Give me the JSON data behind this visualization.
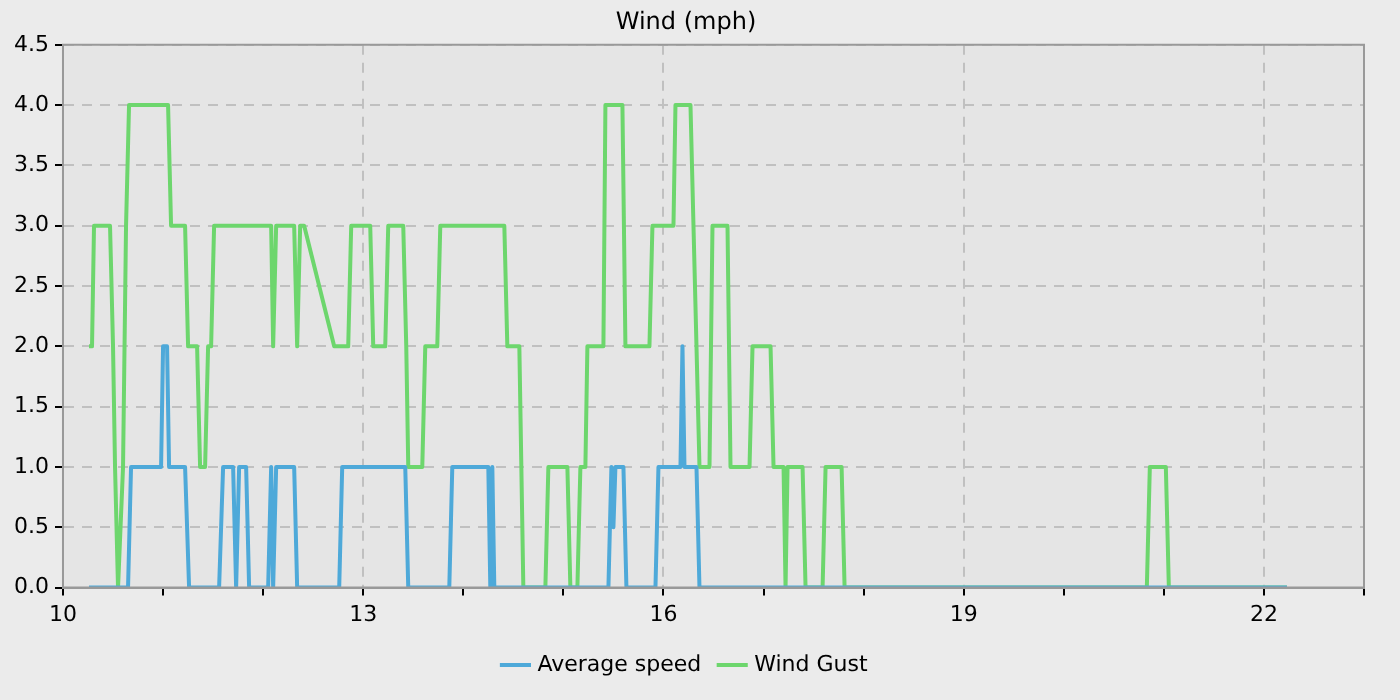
{
  "chart_data": {
    "type": "line",
    "title": "Wind (mph)",
    "xlim": [
      10,
      23
    ],
    "xticks": [
      10,
      {
        "value": 11,
        "label": null
      },
      {
        "value": 12,
        "label": null
      },
      13,
      {
        "value": 14,
        "label": null
      },
      {
        "value": 15,
        "label": null
      },
      16,
      {
        "value": 17,
        "label": null
      },
      {
        "value": 18,
        "label": null
      },
      19,
      {
        "value": 20,
        "label": null
      },
      {
        "value": 21,
        "label": null
      },
      22,
      {
        "value": 23,
        "label": null
      }
    ],
    "ylim": [
      0,
      4.5
    ],
    "yticks": [
      {
        "value": 0,
        "label": "0.0"
      },
      0.5,
      {
        "value": 1,
        "label": "1.0"
      },
      1.5,
      {
        "value": 2,
        "label": "2.0"
      },
      2.5,
      {
        "value": 3,
        "label": "3.0"
      },
      3.5,
      {
        "value": 4,
        "label": "4.0"
      },
      4.5
    ],
    "grid": true,
    "legend": "bottom",
    "marker": "none",
    "line_style": "solid",
    "series": [
      {
        "name": "Average speed",
        "color": "#4ea9d9",
        "x": [
          10.26,
          10.65,
          10.68,
          10.98,
          11.0,
          11.04,
          11.06,
          11.22,
          11.26,
          11.56,
          11.6,
          11.7,
          11.73,
          11.76,
          11.83,
          11.86,
          12.05,
          12.08,
          12.1,
          12.13,
          12.31,
          12.34,
          12.76,
          12.79,
          13.42,
          13.45,
          13.86,
          13.89,
          14.25,
          14.27,
          14.29,
          14.31,
          15.45,
          15.48,
          15.5,
          15.52,
          15.6,
          15.63,
          15.92,
          15.95,
          16.17,
          16.19,
          16.21,
          16.33,
          16.36,
          22.23
        ],
        "values": [
          0,
          0,
          1,
          1,
          2,
          2,
          1,
          1,
          0,
          0,
          1,
          1,
          0,
          1,
          1,
          0,
          0,
          1,
          0,
          1,
          1,
          0,
          0,
          1,
          1,
          0,
          0,
          1,
          1,
          0,
          1,
          0,
          0,
          1,
          0.5,
          1,
          1,
          0,
          0,
          1,
          1,
          2,
          1,
          1,
          0,
          0
        ]
      },
      {
        "name": "Wind Gust",
        "color": "#6dd66d",
        "x": [
          10.26,
          10.29,
          10.31,
          10.47,
          10.5,
          10.52,
          10.55,
          10.6,
          10.63,
          10.66,
          11.05,
          11.08,
          11.22,
          11.25,
          11.34,
          11.37,
          11.42,
          11.45,
          11.48,
          11.51,
          12.08,
          12.1,
          12.13,
          12.31,
          12.34,
          12.37,
          12.41,
          12.71,
          12.85,
          12.88,
          13.07,
          13.1,
          13.22,
          13.25,
          13.4,
          13.43,
          13.45,
          13.59,
          13.62,
          13.74,
          13.77,
          14.41,
          14.44,
          14.56,
          14.6,
          14.82,
          14.85,
          15.04,
          15.07,
          15.14,
          15.17,
          15.22,
          15.24,
          15.4,
          15.42,
          15.59,
          15.62,
          15.86,
          15.89,
          16.1,
          16.12,
          16.27,
          16.3,
          16.33,
          16.36,
          16.46,
          16.49,
          16.64,
          16.67,
          16.86,
          16.89,
          17.07,
          17.1,
          17.2,
          17.22,
          17.24,
          17.39,
          17.42,
          17.59,
          17.62,
          17.78,
          17.81,
          20.83,
          20.86,
          21.02,
          21.05,
          22.23
        ],
        "values": [
          2,
          2,
          3,
          3,
          2,
          1,
          0,
          1,
          3,
          4,
          4,
          3,
          3,
          2,
          2,
          1,
          1,
          2,
          2,
          3,
          3,
          2,
          3,
          3,
          2,
          3,
          3,
          2,
          2,
          3,
          3,
          2,
          2,
          3,
          3,
          2,
          1,
          1,
          2,
          2,
          3,
          3,
          2,
          2,
          0,
          0,
          1,
          1,
          0,
          0,
          1,
          1,
          2,
          2,
          4,
          4,
          2,
          2,
          3,
          3,
          4,
          4,
          3,
          2,
          1,
          1,
          3,
          3,
          1,
          1,
          2,
          2,
          1,
          1,
          0,
          1,
          1,
          0,
          0,
          1,
          1,
          0,
          0,
          1,
          1,
          0,
          0
        ]
      }
    ]
  }
}
